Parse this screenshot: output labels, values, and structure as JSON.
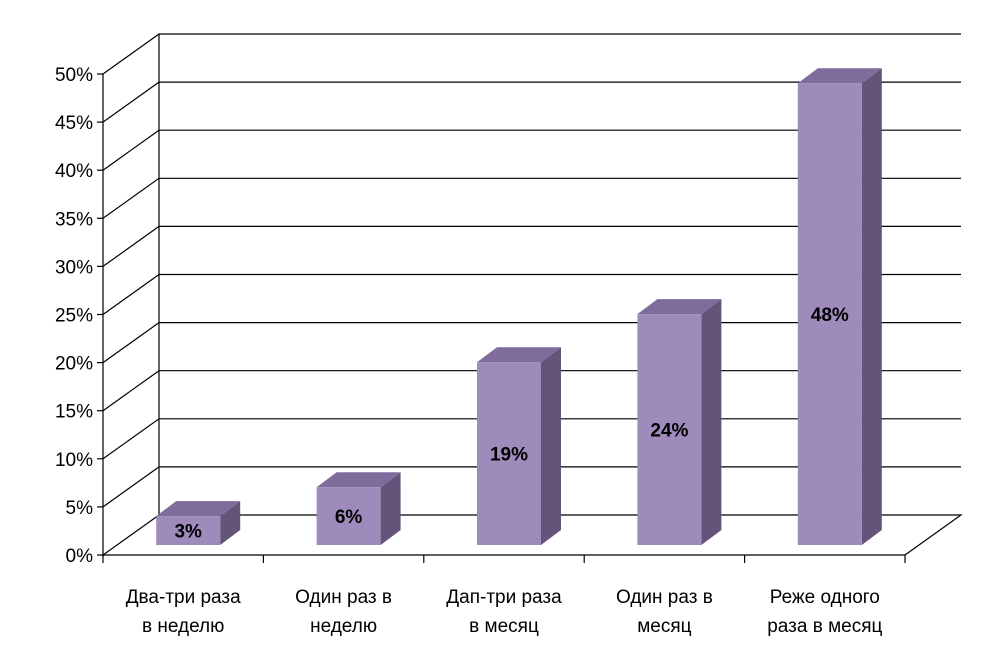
{
  "chart_data": {
    "type": "bar",
    "style": "3d-column",
    "title": "",
    "xlabel": "",
    "ylabel": "",
    "categories": [
      [
        "Два-три раза",
        "в неделю"
      ],
      [
        "Один раз в",
        "неделю"
      ],
      [
        "Дап-три раза",
        "в месяц"
      ],
      [
        "Один раз в",
        "месяц"
      ],
      [
        "Реже одного",
        "раза в месяц"
      ]
    ],
    "values": [
      3,
      6,
      19,
      24,
      48
    ],
    "data_labels": [
      "3%",
      "6%",
      "19%",
      "24%",
      "48%"
    ],
    "ylim": [
      0,
      50
    ],
    "yticks": [
      "0%",
      "5%",
      "10%",
      "15%",
      "20%",
      "25%",
      "30%",
      "35%",
      "40%",
      "45%",
      "50%"
    ],
    "grid": true,
    "legend": "none",
    "colors": {
      "bar_front": "#9e8bbb",
      "bar_side": "#65547a",
      "bar_top": "#7f6b9c"
    }
  }
}
